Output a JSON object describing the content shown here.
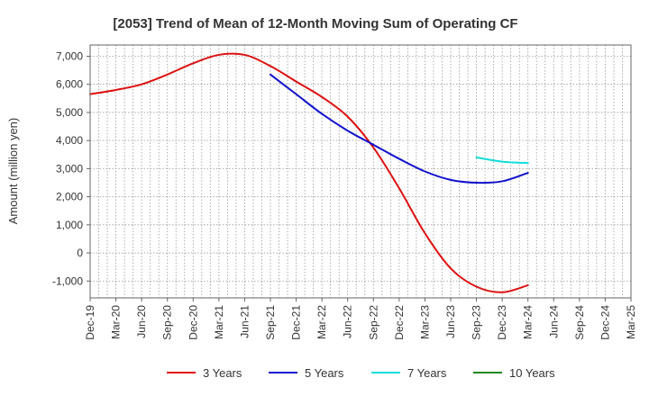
{
  "chart_data": {
    "type": "line",
    "title": "[2053]  Trend of Mean of 12-Month Moving Sum of Operating CF",
    "xlabel": "",
    "ylabel": "Amount (million yen)",
    "ylim": [
      -1600,
      7400
    ],
    "yticks": [
      -1000,
      0,
      1000,
      2000,
      3000,
      4000,
      5000,
      6000,
      7000
    ],
    "ytick_labels": [
      "-1,000",
      "0",
      "1,000",
      "2,000",
      "3,000",
      "4,000",
      "5,000",
      "6,000",
      "7,000"
    ],
    "categories": [
      "Dec-19",
      "Mar-20",
      "Jun-20",
      "Sep-20",
      "Dec-20",
      "Mar-21",
      "Jun-21",
      "Sep-21",
      "Dec-21",
      "Mar-22",
      "Jun-22",
      "Sep-22",
      "Dec-22",
      "Mar-23",
      "Jun-23",
      "Sep-23",
      "Dec-23",
      "Mar-24",
      "Jun-24",
      "Sep-24",
      "Dec-24",
      "Mar-25"
    ],
    "grid": true,
    "legend_position": "bottom",
    "series": [
      {
        "name": "3 Years",
        "color": "#dd1111",
        "values": [
          5650,
          5800,
          6000,
          6350,
          6750,
          7050,
          7050,
          6650,
          6100,
          5550,
          4850,
          3750,
          2300,
          700,
          -550,
          -1200,
          -1400,
          -1150,
          null,
          null,
          null,
          null
        ]
      },
      {
        "name": "5 Years",
        "color": "#1111cc",
        "values": [
          null,
          null,
          null,
          null,
          null,
          null,
          null,
          6350,
          5650,
          4950,
          4350,
          3850,
          3350,
          2900,
          2600,
          2500,
          2550,
          2850,
          null,
          null,
          null,
          null
        ]
      },
      {
        "name": "7 Years",
        "color": "#11dddd",
        "values": [
          null,
          null,
          null,
          null,
          null,
          null,
          null,
          null,
          null,
          null,
          null,
          null,
          null,
          null,
          null,
          3400,
          3250,
          3200,
          null,
          null,
          null,
          null
        ]
      },
      {
        "name": "10 Years",
        "color": "#228822",
        "values": [
          null,
          null,
          null,
          null,
          null,
          null,
          null,
          null,
          null,
          null,
          null,
          null,
          null,
          null,
          null,
          null,
          null,
          null,
          null,
          null,
          null,
          null
        ]
      }
    ]
  }
}
